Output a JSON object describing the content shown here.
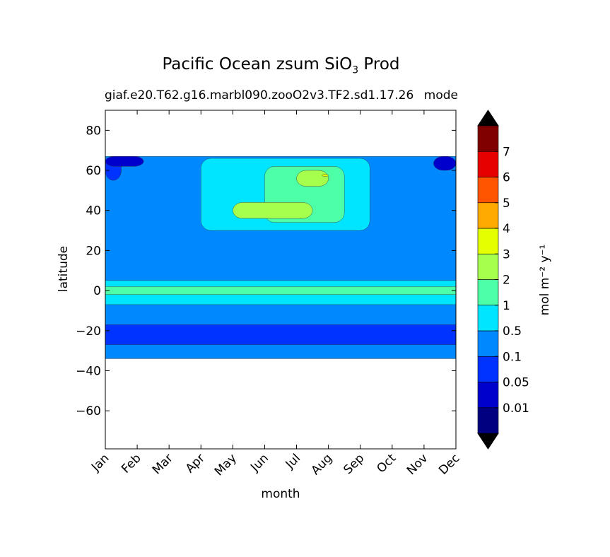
{
  "title": {
    "main": "Pacific Ocean zsum SiO",
    "sub": "3",
    "suffix": " Prod"
  },
  "subtitle_left": "giaf.e20.T62.g16.marbl090.zooO2v3.TF2.sd1.17.26",
  "subtitle_right": "mode",
  "chart_data": {
    "type": "heatmap",
    "xlabel": "month",
    "ylabel": "latitude",
    "x_ticks": [
      "Jan",
      "Feb",
      "Mar",
      "Apr",
      "May",
      "Jun",
      "Jul",
      "Aug",
      "Sep",
      "Oct",
      "Nov",
      "Dec"
    ],
    "y_ticks": [
      80,
      60,
      40,
      20,
      0,
      -20,
      -40,
      -60
    ],
    "xlim": [
      0,
      11
    ],
    "ylim": [
      -79,
      90
    ],
    "data_lat_range": [
      -34,
      67
    ],
    "colorbar": {
      "label": "mol m⁻² y⁻¹",
      "levels": [
        "0.01",
        "0.05",
        "0.1",
        "0.5",
        "1",
        "2",
        "3",
        "4",
        "5",
        "6",
        "7"
      ],
      "colors": [
        "#000080",
        "#0000cd",
        "#0033ff",
        "#0088ff",
        "#00e5ff",
        "#4dffa6",
        "#a6ff4d",
        "#e5ff00",
        "#ffaa00",
        "#ff5500",
        "#e60000",
        "#800000"
      ],
      "extend": "both",
      "under_color": "#000000",
      "over_color": "#000000"
    },
    "bands": [
      {
        "level_index": 3,
        "lat_min": -34,
        "lat_max": 67,
        "x_min": 0,
        "x_max": 11
      },
      {
        "level_index": 2,
        "lat_min": -27,
        "lat_max": -17,
        "x_min": 0,
        "x_max": 11
      },
      {
        "level_index": 2,
        "lat_min": 55,
        "lat_max": 67,
        "x_min": 0,
        "x_max": 0.5
      },
      {
        "level_index": 1,
        "lat_min": 62,
        "lat_max": 67,
        "x_min": 0,
        "x_max": 1.2
      },
      {
        "level_index": 1,
        "lat_min": 60,
        "lat_max": 67,
        "x_min": 10.3,
        "x_max": 11
      },
      {
        "level_index": 4,
        "lat_min": -7,
        "lat_max": 5,
        "x_min": 0,
        "x_max": 11
      },
      {
        "level_index": 4,
        "lat_min": 30,
        "lat_max": 66,
        "x_min": 3,
        "x_max": 8.3
      },
      {
        "level_index": 5,
        "lat_min": -2,
        "lat_max": 2,
        "x_min": 0,
        "x_max": 11
      },
      {
        "level_index": 5,
        "lat_min": 34,
        "lat_max": 62,
        "x_min": 5,
        "x_max": 7.5
      },
      {
        "level_index": 6,
        "lat_min": 36,
        "lat_max": 44,
        "x_min": 4,
        "x_max": 6.5
      },
      {
        "level_index": 6,
        "lat_min": 52,
        "lat_max": 60,
        "x_min": 6,
        "x_max": 7
      },
      {
        "level_index": 7,
        "lat_min": 57,
        "lat_max": 58,
        "x_min": 6.8,
        "x_max": 7
      }
    ]
  }
}
